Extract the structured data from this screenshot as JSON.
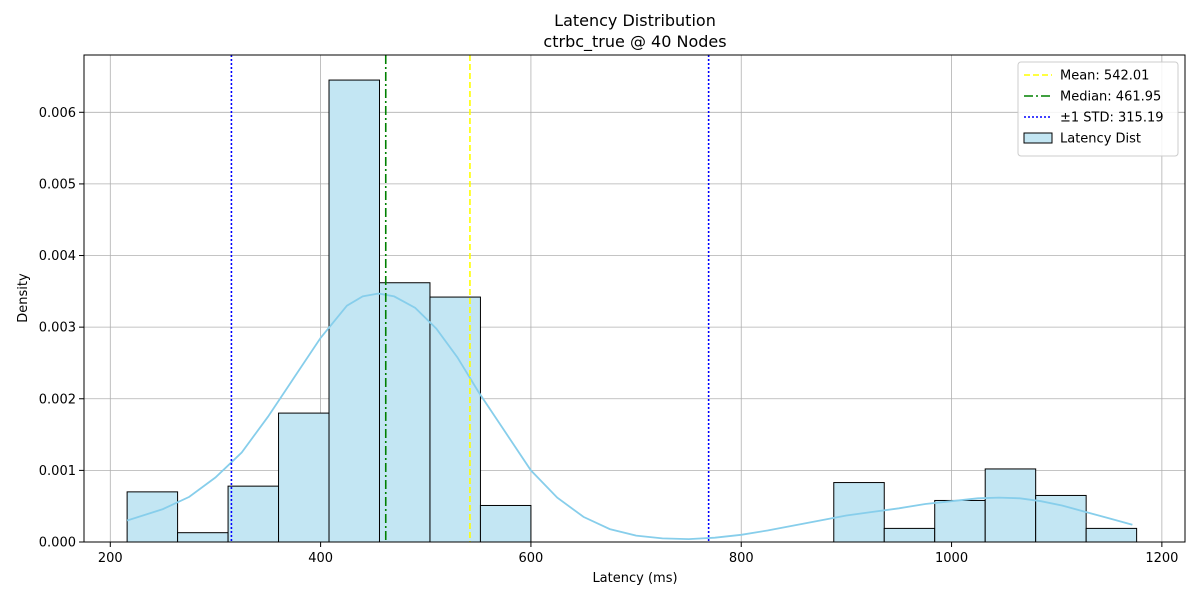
{
  "chart_data": {
    "type": "histogram",
    "title": "Latency Distribution",
    "subtitle": "ctrbc_true @ 40 Nodes",
    "xlabel": "Latency (ms)",
    "ylabel": "Density",
    "xlim": [
      175,
      1222
    ],
    "ylim": [
      0,
      0.0068
    ],
    "xticks": [
      200,
      400,
      600,
      800,
      1000,
      1200
    ],
    "yticks": [
      0.0,
      0.001,
      0.002,
      0.003,
      0.004,
      0.005,
      0.006
    ],
    "ytick_labels": [
      "0.000",
      "0.001",
      "0.002",
      "0.003",
      "0.004",
      "0.005",
      "0.006"
    ],
    "grid": true,
    "legend_position": "top-right",
    "bins": [
      {
        "x0": 216,
        "x1": 264,
        "density": 0.0007
      },
      {
        "x0": 264,
        "x1": 312,
        "density": 0.00013
      },
      {
        "x0": 312,
        "x1": 360,
        "density": 0.00078
      },
      {
        "x0": 360,
        "x1": 408,
        "density": 0.0018
      },
      {
        "x0": 408,
        "x1": 456,
        "density": 0.00645
      },
      {
        "x0": 456,
        "x1": 504,
        "density": 0.00362
      },
      {
        "x0": 504,
        "x1": 552,
        "density": 0.00342
      },
      {
        "x0": 552,
        "x1": 600,
        "density": 0.00051
      },
      {
        "x0": 888,
        "x1": 936,
        "density": 0.00083
      },
      {
        "x0": 936,
        "x1": 984,
        "density": 0.00019
      },
      {
        "x0": 984,
        "x1": 1032,
        "density": 0.00058
      },
      {
        "x0": 1032,
        "x1": 1080,
        "density": 0.00102
      },
      {
        "x0": 1080,
        "x1": 1128,
        "density": 0.00065
      },
      {
        "x0": 1128,
        "x1": 1176,
        "density": 0.00019
      }
    ],
    "kde": {
      "x": [
        216,
        250,
        275,
        300,
        325,
        350,
        375,
        400,
        425,
        440,
        455,
        470,
        490,
        510,
        530,
        550,
        575,
        600,
        625,
        650,
        675,
        700,
        725,
        750,
        775,
        800,
        825,
        850,
        875,
        900,
        925,
        950,
        975,
        1000,
        1025,
        1045,
        1065,
        1085,
        1105,
        1125,
        1150,
        1172
      ],
      "y": [
        0.0003,
        0.00046,
        0.00063,
        0.0009,
        0.00125,
        0.00175,
        0.0023,
        0.00285,
        0.0033,
        0.00343,
        0.00347,
        0.00343,
        0.00327,
        0.00298,
        0.00258,
        0.0021,
        0.00155,
        0.001,
        0.00062,
        0.00035,
        0.00018,
        9e-05,
        5e-05,
        4e-05,
        6e-05,
        0.0001,
        0.00016,
        0.00023,
        0.0003,
        0.00037,
        0.00042,
        0.00047,
        0.00053,
        0.00057,
        0.00061,
        0.00062,
        0.00061,
        0.00057,
        0.00051,
        0.00043,
        0.00033,
        0.00024
      ]
    },
    "vlines": [
      {
        "name": "Mean: 542.01",
        "x": 542.01,
        "color": "#ffff00",
        "style": "dashed"
      },
      {
        "name": "Median: 461.95",
        "x": 461.95,
        "color": "#008000",
        "style": "dashdot"
      },
      {
        "name": "±1 STD: 315.19",
        "x": 315.19,
        "color": "#0000ff",
        "style": "dotted"
      },
      {
        "name": "",
        "x": 769.0,
        "color": "#0000ff",
        "style": "dotted"
      }
    ],
    "legend": [
      {
        "label": "Mean: 542.01",
        "kind": "line",
        "color": "#ffff00",
        "style": "dashed"
      },
      {
        "label": "Median: 461.95",
        "kind": "line",
        "color": "#008000",
        "style": "dashdot"
      },
      {
        "label": "±1 STD: 315.19",
        "kind": "line",
        "color": "#0000ff",
        "style": "dotted"
      },
      {
        "label": "Latency Dist",
        "kind": "patch",
        "color": "#87ceeb"
      }
    ],
    "colors": {
      "bar_fill": "#c3e6f3",
      "bar_edge": "#000000",
      "kde": "#87ceeb",
      "grid": "#b0b0b0"
    }
  }
}
